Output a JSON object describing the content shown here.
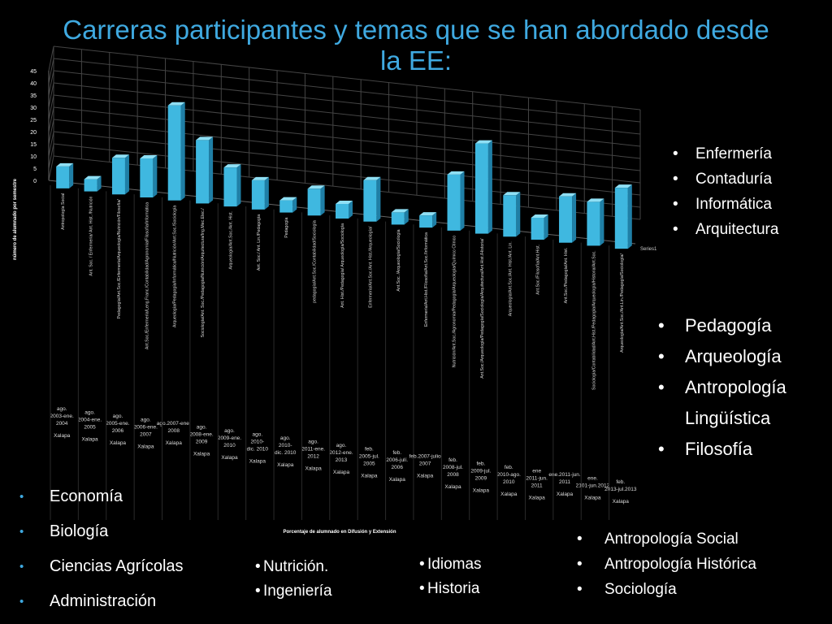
{
  "slide": {
    "title_line1": "Carreras participantes y temas que se han abordado desde",
    "title_line2": "la EE:"
  },
  "colors": {
    "title": "#3fa9e0",
    "bar_front": "#3fb8e0",
    "bar_side": "#1f7fa6",
    "bar_top": "#8fe0f5",
    "grid": "#444444",
    "text": "#ffffff"
  },
  "lists": {
    "right_top": [
      "Enfermería",
      "Contaduría",
      "Informática",
      "Arquitectura"
    ],
    "right_mid": [
      "Pedagogía",
      "Arqueología",
      "Antropología Lingüística",
      "Filosofía"
    ],
    "left": [
      "Economía",
      "Biología",
      "Ciencias Agrícolas",
      "Administración"
    ],
    "mid1": [
      "Nutrición.",
      "Ingeniería"
    ],
    "mid2": [
      "Idiomas",
      "Historia"
    ],
    "right_bottom": [
      "Antropología Social",
      "Antropología Histórica",
      "Sociología"
    ]
  },
  "chart_data": {
    "type": "bar",
    "ylabel": "número de alumnado por semestre",
    "xlabel": "Porcentaje de alumnado en Difusión y Extensión",
    "ylim": [
      0,
      45
    ],
    "yticks": [
      0,
      5,
      10,
      15,
      20,
      25,
      30,
      35,
      40,
      45
    ],
    "grid": true,
    "legend": "right",
    "series": [
      {
        "name": "Series1",
        "values": [
          9,
          5,
          15,
          16,
          39,
          26,
          16,
          12,
          5,
          11,
          6,
          17,
          5,
          5,
          23,
          37,
          17,
          9,
          19,
          18,
          25
        ]
      }
    ],
    "categories": [
      {
        "topic": "Antropología Social",
        "period": "ago. 2003-ene. 2004",
        "place": "Xalapa"
      },
      {
        "topic": "Ant. Soc. / Enfermería/ Ant. Hist. /Nutrición",
        "period": "ago. 2004-ene. 2005",
        "place": "Xalapa"
      },
      {
        "topic": "Pedagogía/Ant.Soc./Enfermería/Arqueología/Nutrición/Filosofía/",
        "period": "ago. 2005-ene. 2006",
        "place": "Xalapa"
      },
      {
        "topic": "Ant.Soc./Enfermería/Leng.Franc./Contabilidad/Agronomía/Filosofía/Informática",
        "period": "ago. 2006-ene. 2007",
        "place": "Xalapa"
      },
      {
        "topic": "Arqueología/Pedagogía/Informática/Nutrición/Ant.Soc./Sociología",
        "period": "ago.2007-ene. 2008",
        "place": "Xalapa"
      },
      {
        "topic": "Sociología/Ant. Soc./Pedagogía/Nutrición/Arquitectura/Ing.Mec.Elec./",
        "period": "ago. 2008-ene. 2009",
        "place": "Xalapa"
      },
      {
        "topic": "Arqueología/Ant.Soc./Ant. Hist.",
        "period": "ago. 2009-ene. 2010",
        "place": "Xalapa"
      },
      {
        "topic": "Ant. Soc./ Ant. Lin./Pedagogía",
        "period": "ago. 2010- dic. 2010",
        "place": "Xalapa"
      },
      {
        "topic": "Pedagogía",
        "period": "ago. 2010- dic. 2010",
        "place": "Xalapa"
      },
      {
        "topic": "pedagogía/Ant.Soc./Contabilidad/Sociología",
        "period": "ago. 2011-ene. 2012",
        "place": "Xalapa"
      },
      {
        "topic": "Ant. Hist./Pedagogía/ Arqueología/Sociología",
        "period": "ago. 2012-ene. 2013",
        "place": "Xalapa"
      },
      {
        "topic": "Enfermería/Ant.Soc./Ant. Hist./Arqueología/",
        "period": "feb. 2005-jul. 2005",
        "place": "Xalapa"
      },
      {
        "topic": "Ant.Soc. /Arqueología/Sociología",
        "period": "feb. 2006-julí. 2006",
        "place": "Xalapa"
      },
      {
        "topic": "Enfermería/Ant.Hist./Filosofía/Ant.Soc./Informática",
        "period": "feb.2007-julio 2007",
        "place": "Xalapa"
      },
      {
        "topic": "Nutrición/Ant.Soc./Agronomía/Pedagogía/Arqueología/Químico Clínico",
        "period": "feb. 2008-jul. 2008",
        "place": "Xalapa"
      },
      {
        "topic": "Ant.Soc./Arqueología/Pedagogía/Sociología/Arquitectura/Ant.Hist./Historia/",
        "period": "feb. 2009-jul. 2009",
        "place": "Xalapa"
      },
      {
        "topic": "Arqueología/Ant.Soc./Ant. Hist./Ant. Lin.",
        "period": "feb. 2010-ago. 2010",
        "place": "Xalapa"
      },
      {
        "topic": "Ant.Soc./Filosofía/Ant.Hist.",
        "period": "ene 2011-jun. 2011",
        "place": "Xalapa"
      },
      {
        "topic": "Ant.Soc./Pedagogía/Ant. Hist.",
        "period": "ene.2011-jun. 2011",
        "place": "Xalapa"
      },
      {
        "topic": "Sociología/Contabilidad/Ant.Hist./Pedagogía/Arqueología/Historia/Ant.Soc.",
        "period": "ene. 2101-jun.2012",
        "place": "Xalapa"
      },
      {
        "topic": "Arqueología/Ant.Soc./Ant.Lin./Pedagogía/Sociología/",
        "period": "feb. 2013-jul.2013",
        "place": "Xalapa"
      }
    ]
  }
}
